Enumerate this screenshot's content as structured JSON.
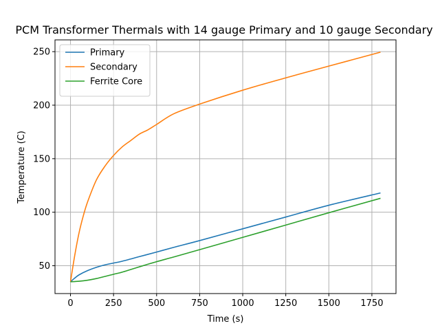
{
  "chart_data": {
    "type": "line",
    "title": "PCM Transformer Thermals with 14 gauge Primary and 10 gauge Secondary",
    "xlabel": "Time (s)",
    "ylabel": "Temperature (C)",
    "xlim": [
      -90,
      1890
    ],
    "ylim": [
      24,
      261
    ],
    "xticks": [
      0,
      250,
      500,
      750,
      1000,
      1250,
      1500,
      1750
    ],
    "yticks": [
      50,
      100,
      150,
      200,
      250
    ],
    "grid": true,
    "legend_position": "top-left",
    "series": [
      {
        "name": "Primary",
        "color": "#1f77b4",
        "x": [
          0,
          25,
          50,
          100,
          150,
          200,
          250,
          300,
          400,
          500,
          600,
          750,
          1000,
          1250,
          1500,
          1800
        ],
        "y": [
          35,
          38.5,
          41.5,
          45.5,
          48.5,
          50.8,
          52.5,
          54.2,
          58.5,
          62.8,
          67.2,
          73.5,
          84.5,
          95.5,
          106.5,
          118
        ]
      },
      {
        "name": "Secondary",
        "color": "#ff7f0e",
        "x": [
          0,
          25,
          50,
          75,
          100,
          150,
          200,
          250,
          300,
          350,
          400,
          450,
          500,
          600,
          750,
          1000,
          1250,
          1500,
          1800
        ],
        "y": [
          35,
          60,
          81,
          97,
          110,
          130,
          143,
          153,
          161,
          167,
          173,
          177,
          182,
          192,
          201,
          214,
          225.5,
          236.5,
          249.5
        ]
      },
      {
        "name": "Ferrite Core",
        "color": "#2ca02c",
        "x": [
          0,
          50,
          100,
          150,
          200,
          250,
          300,
          350,
          400,
          500,
          600,
          750,
          1000,
          1250,
          1500,
          1800
        ],
        "y": [
          35,
          35.5,
          36.5,
          38,
          40,
          42,
          44,
          46.5,
          49,
          53.8,
          58.2,
          65,
          76.5,
          88,
          99.5,
          113
        ]
      }
    ]
  }
}
